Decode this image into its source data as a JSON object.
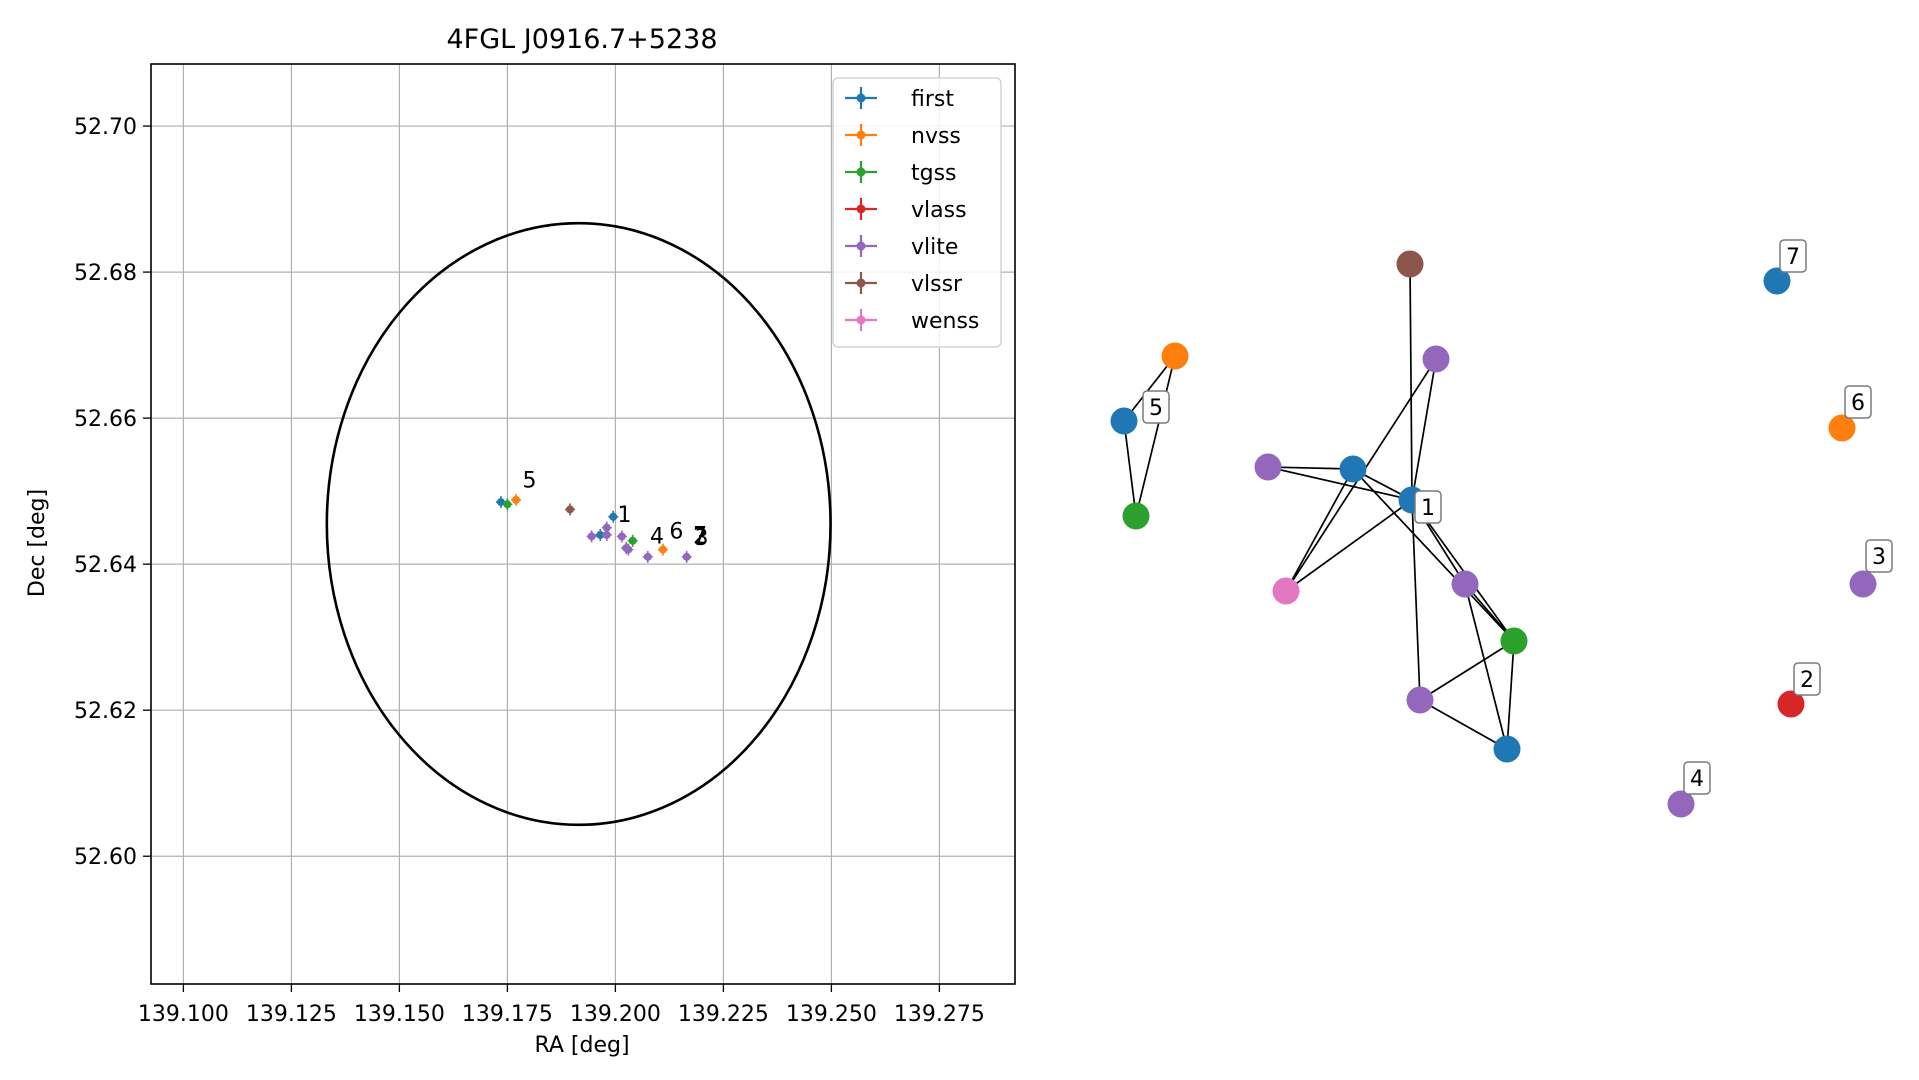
{
  "chart_data": [
    {
      "type": "scatter",
      "title": "4FGL J0916.7+5238",
      "xlabel": "RA [deg]",
      "ylabel": "Dec [deg]",
      "xlim": [
        139.0925,
        139.2925
      ],
      "ylim": [
        52.5825,
        52.7085
      ],
      "xticks": [
        139.1,
        139.125,
        139.15,
        139.175,
        139.2,
        139.225,
        139.25,
        139.275
      ],
      "xtick_labels": [
        "139.100",
        "139.125",
        "139.150",
        "139.175",
        "139.200",
        "139.225",
        "139.250",
        "139.275"
      ],
      "yticks": [
        52.6,
        52.62,
        52.64,
        52.66,
        52.68,
        52.7
      ],
      "ytick_labels": [
        "52.60",
        "52.62",
        "52.64",
        "52.66",
        "52.68",
        "52.70"
      ],
      "grid": true,
      "legend": "top-right",
      "error_ellipse": {
        "center_ra": 139.1915,
        "center_dec": 52.6455,
        "semi_ra": 0.0583,
        "semi_dec": 0.0412
      },
      "series": [
        {
          "name": "first",
          "color": "#1f77b4",
          "points": [
            [
              139.1735,
              52.6485
            ],
            [
              139.1995,
              52.6465
            ],
            [
              139.1965,
              52.644
            ]
          ]
        },
        {
          "name": "nvss",
          "color": "#ff7f0e",
          "points": [
            [
              139.177,
              52.6488
            ],
            [
              139.211,
              52.642
            ]
          ]
        },
        {
          "name": "tgss",
          "color": "#2ca02c",
          "points": [
            [
              139.175,
              52.6482
            ],
            [
              139.204,
              52.6432
            ]
          ]
        },
        {
          "name": "vlass",
          "color": "#d62728",
          "points": []
        },
        {
          "name": "vlite",
          "color": "#9467bd",
          "points": [
            [
              139.198,
              52.645
            ],
            [
              139.2015,
              52.6438
            ],
            [
              139.1945,
              52.6438
            ],
            [
              139.198,
              52.644
            ],
            [
              139.2025,
              52.6422
            ],
            [
              139.203,
              52.642
            ],
            [
              139.2075,
              52.641
            ],
            [
              139.2165,
              52.641
            ]
          ]
        },
        {
          "name": "vlssr",
          "color": "#8c564b",
          "points": [
            [
              139.1895,
              52.6475
            ]
          ]
        },
        {
          "name": "wenss",
          "color": "#e377c2",
          "points": []
        }
      ],
      "annotations": [
        {
          "text": "5",
          "ra": 139.1785,
          "dec": 52.6505
        },
        {
          "text": "1",
          "ra": 139.2005,
          "dec": 52.6458
        },
        {
          "text": "4",
          "ra": 139.208,
          "dec": 52.6428
        },
        {
          "text": "6",
          "ra": 139.2125,
          "dec": 52.6435
        },
        {
          "text": "7",
          "ra": 139.218,
          "dec": 52.643
        },
        {
          "text": "2",
          "ra": 139.218,
          "dec": 52.6428
        },
        {
          "text": "3",
          "ra": 139.2183,
          "dec": 52.6426
        }
      ]
    },
    {
      "type": "network",
      "nodes": [
        {
          "id": "a",
          "color": "#1f77b4"
        },
        {
          "id": "b",
          "color": "#ff7f0e"
        },
        {
          "id": "c",
          "color": "#2ca02c"
        },
        {
          "id": "d",
          "color": "#8c564b"
        },
        {
          "id": "e",
          "color": "#9467bd"
        },
        {
          "id": "f",
          "color": "#9467bd"
        },
        {
          "id": "g",
          "color": "#1f77b4"
        },
        {
          "id": "h",
          "color": "#1f77b4",
          "label": "1"
        },
        {
          "id": "i",
          "color": "#e377c2"
        },
        {
          "id": "j",
          "color": "#9467bd"
        },
        {
          "id": "k",
          "color": "#2ca02c"
        },
        {
          "id": "l",
          "color": "#9467bd"
        },
        {
          "id": "m",
          "color": "#1f77b4"
        },
        {
          "id": "n",
          "color": "#1f77b4",
          "label": "5"
        },
        {
          "id": "o",
          "color": "#ff7f0e",
          "label": "6"
        },
        {
          "id": "p",
          "color": "#9467bd",
          "label": "3"
        },
        {
          "id": "q",
          "color": "#d62728",
          "label": "2"
        },
        {
          "id": "r",
          "color": "#9467bd",
          "label": "4"
        },
        {
          "id": "s",
          "color": "#1f77b4",
          "label": "7"
        }
      ],
      "edges": [
        [
          "a",
          "b"
        ],
        [
          "a",
          "c"
        ],
        [
          "b",
          "c"
        ],
        [
          "d",
          "h"
        ],
        [
          "e",
          "g"
        ],
        [
          "e",
          "h"
        ],
        [
          "f",
          "i"
        ],
        [
          "f",
          "h"
        ],
        [
          "g",
          "i"
        ],
        [
          "g",
          "h"
        ],
        [
          "h",
          "i"
        ],
        [
          "h",
          "j"
        ],
        [
          "h",
          "k"
        ],
        [
          "h",
          "l"
        ],
        [
          "j",
          "k"
        ],
        [
          "j",
          "m"
        ],
        [
          "k",
          "l"
        ],
        [
          "k",
          "m"
        ],
        [
          "l",
          "m"
        ],
        [
          "g",
          "k"
        ]
      ]
    }
  ]
}
